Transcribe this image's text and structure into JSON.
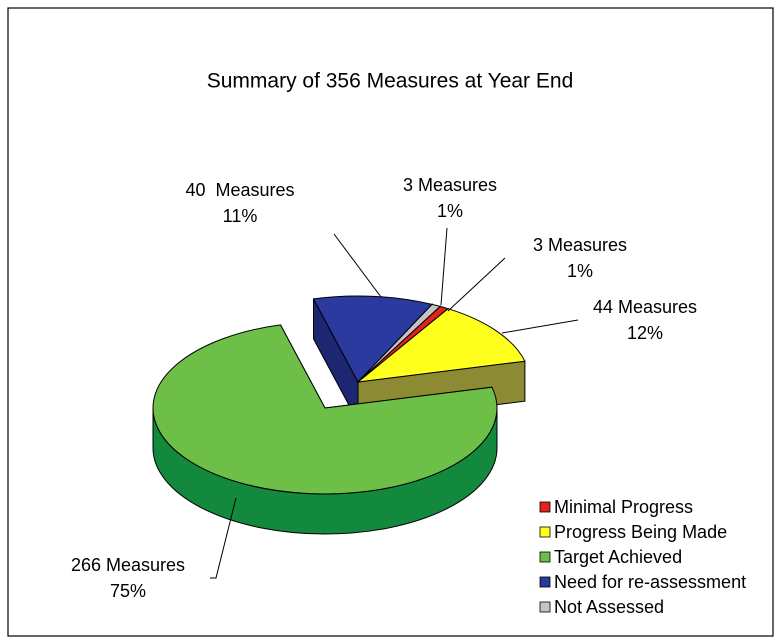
{
  "chart_data": {
    "type": "pie3d",
    "title": "Summary of 356 Measures at Year End",
    "categories": [
      "Minimal Progress",
      "Progress Being Made",
      "Target Achieved",
      "Need for re-assessment",
      "Not Assessed"
    ],
    "values": [
      3,
      44,
      266,
      40,
      3
    ],
    "value_labels": [
      "3 Measures",
      "44 Measures",
      "266 Measures",
      "40  Measures",
      "3 Measures"
    ],
    "percent_labels": [
      "1%",
      "12%",
      "75%",
      "11%",
      "1%"
    ],
    "colors": [
      "#e3221f",
      "#ffff1e",
      "#6dbf47",
      "#2b3a9e",
      "#c4c4c4"
    ],
    "side_colors": [
      "#8a1a16",
      "#8c8a32",
      "#13893d",
      "#1d2670",
      "#8a8a8a"
    ],
    "legend": "bottom-right"
  }
}
